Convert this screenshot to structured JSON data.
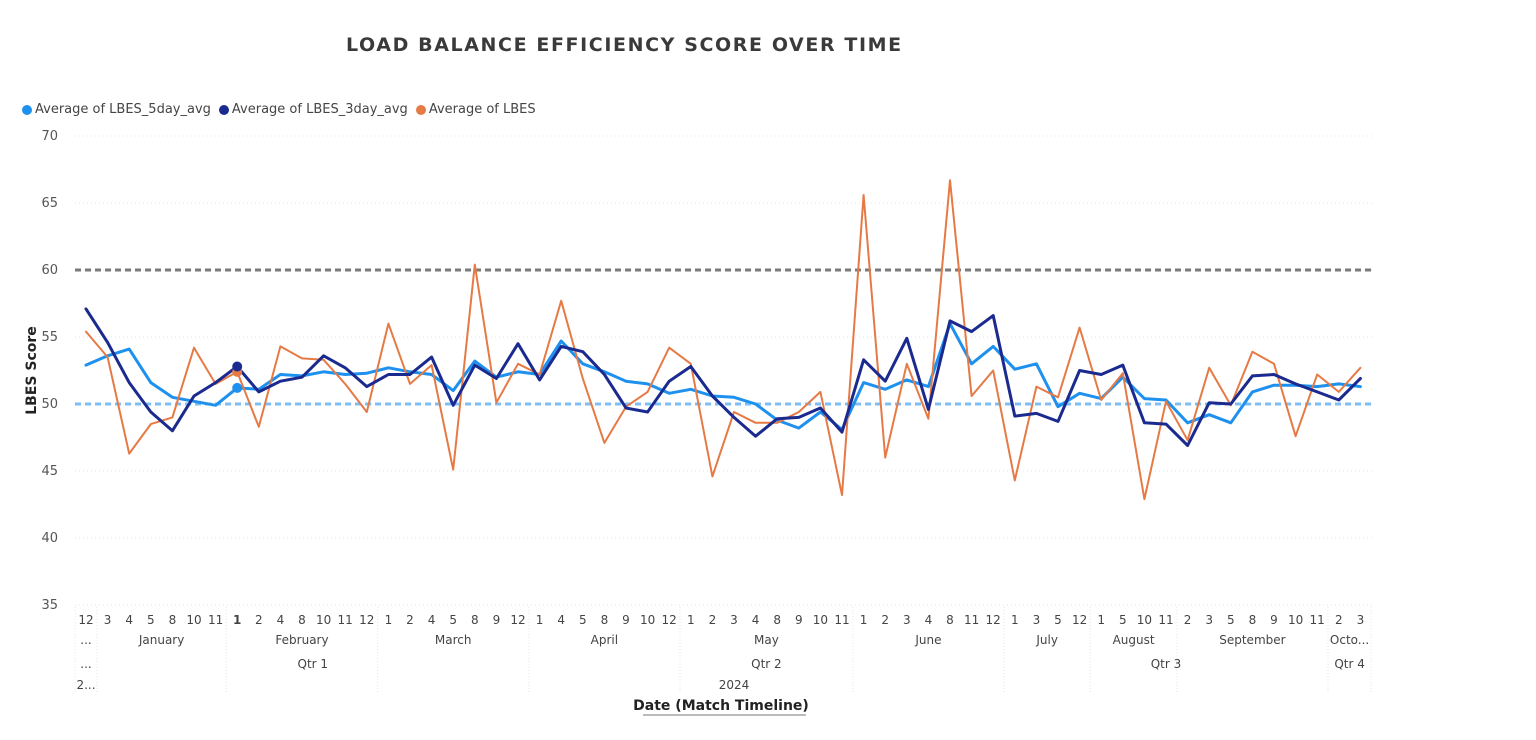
{
  "chart_data": {
    "type": "line",
    "title": "LOAD BALANCE EFFICIENCY SCORE OVER TIME",
    "ylabel": "LBES Score",
    "xlabel": "Date (Match Timeline)",
    "ylim": [
      35,
      70
    ],
    "yticks": [
      "70",
      "65",
      "60",
      "55",
      "50",
      "45",
      "40",
      "35"
    ],
    "reference_lines": [
      {
        "value": 60,
        "color": "#7a7a7a"
      },
      {
        "value": 50,
        "color": "#7fbef5"
      }
    ],
    "x_days": [
      "12",
      "3",
      "4",
      "5",
      "8",
      "10",
      "11",
      "1",
      "2",
      "4",
      "8",
      "10",
      "11",
      "12",
      "1",
      "2",
      "4",
      "5",
      "8",
      "9",
      "12",
      "1",
      "4",
      "5",
      "8",
      "9",
      "10",
      "12",
      "1",
      "2",
      "3",
      "4",
      "8",
      "9",
      "10",
      "11",
      "1",
      "2",
      "3",
      "4",
      "8",
      "11",
      "12",
      "1",
      "3",
      "5",
      "12",
      "1",
      "5",
      "10",
      "11",
      "2",
      "3",
      "5",
      "8",
      "9",
      "10",
      "11",
      "2",
      "3"
    ],
    "bold_day_index": 7,
    "x_months": [
      {
        "label": "...",
        "start": 0,
        "end": 0
      },
      {
        "label": "January",
        "start": 1,
        "end": 6
      },
      {
        "label": "February",
        "start": 7,
        "end": 13
      },
      {
        "label": "March",
        "start": 14,
        "end": 20
      },
      {
        "label": "April",
        "start": 21,
        "end": 27
      },
      {
        "label": "May",
        "start": 28,
        "end": 35
      },
      {
        "label": "June",
        "start": 36,
        "end": 42
      },
      {
        "label": "July",
        "start": 43,
        "end": 46
      },
      {
        "label": "August",
        "start": 47,
        "end": 50
      },
      {
        "label": "September",
        "start": 51,
        "end": 57
      },
      {
        "label": "Octo...",
        "start": 58,
        "end": 59
      }
    ],
    "x_quarters": [
      {
        "label": "...",
        "start": 0,
        "end": 0
      },
      {
        "label": "Qtr 1",
        "start": 1,
        "end": 20
      },
      {
        "label": "Qtr 2",
        "start": 21,
        "end": 42
      },
      {
        "label": "Qtr 3",
        "start": 43,
        "end": 57
      },
      {
        "label": "Qtr 4",
        "start": 58,
        "end": 59
      }
    ],
    "x_years": [
      {
        "label": "2...",
        "start": 0,
        "end": 0
      },
      {
        "label": "2024",
        "start": 1,
        "end": 59
      }
    ],
    "series": [
      {
        "name": "Average of LBES_5day_avg",
        "color": "#1e90ee",
        "width": 3,
        "values": [
          52.9,
          53.6,
          54.1,
          51.6,
          50.5,
          50.2,
          49.9,
          51.2,
          51.1,
          52.2,
          52.1,
          52.4,
          52.2,
          52.3,
          52.7,
          52.4,
          52.2,
          51.0,
          53.2,
          52.0,
          52.4,
          52.2,
          54.7,
          53.0,
          52.4,
          51.7,
          51.5,
          50.8,
          51.1,
          50.6,
          50.5,
          50.0,
          48.8,
          48.2,
          49.4,
          48.1,
          51.6,
          51.1,
          51.8,
          51.3,
          56.0,
          53.0,
          54.3,
          52.6,
          53.0,
          49.8,
          50.8,
          50.4,
          52.0,
          50.4,
          50.3,
          48.6,
          49.2,
          48.6,
          50.9,
          51.4,
          51.4,
          51.3,
          51.5,
          51.3
        ],
        "marker_index": 7
      },
      {
        "name": "Average of LBES_3day_avg",
        "color": "#1a2a8f",
        "width": 3,
        "values": [
          57.1,
          54.6,
          51.6,
          49.4,
          48.0,
          50.6,
          51.6,
          52.8,
          50.9,
          51.7,
          52.0,
          53.6,
          52.7,
          51.3,
          52.2,
          52.2,
          53.5,
          49.9,
          52.9,
          51.9,
          54.5,
          51.8,
          54.3,
          53.9,
          52.2,
          49.7,
          49.4,
          51.7,
          52.8,
          50.6,
          49.0,
          47.6,
          48.9,
          49.0,
          49.7,
          47.9,
          53.3,
          51.7,
          54.9,
          49.6,
          56.2,
          55.4,
          56.6,
          49.1,
          49.3,
          48.7,
          52.5,
          52.2,
          52.9,
          48.6,
          48.5,
          46.9,
          50.1,
          50.0,
          52.1,
          52.2,
          51.5,
          50.9,
          50.3,
          51.9
        ],
        "marker_index": 7
      },
      {
        "name": "Average of LBES",
        "color": "#e67a45",
        "width": 2,
        "values": [
          55.4,
          53.5,
          46.3,
          48.5,
          49.0,
          54.2,
          51.5,
          52.4,
          48.3,
          54.3,
          53.4,
          53.3,
          51.5,
          49.4,
          56.0,
          51.5,
          52.9,
          45.1,
          60.4,
          50.1,
          53.0,
          52.2,
          57.7,
          51.9,
          47.1,
          49.8,
          50.9,
          54.2,
          53.0,
          44.6,
          49.4,
          48.6,
          48.6,
          49.4,
          50.9,
          43.2,
          65.6,
          46.0,
          53.0,
          48.9,
          66.7,
          50.6,
          52.5,
          44.3,
          51.3,
          50.5,
          55.7,
          50.3,
          52.3,
          42.9,
          50.2,
          47.3,
          52.7,
          49.9,
          53.9,
          53.0,
          47.6,
          52.2,
          50.9,
          52.7
        ],
        "marker_index": 7
      }
    ]
  }
}
